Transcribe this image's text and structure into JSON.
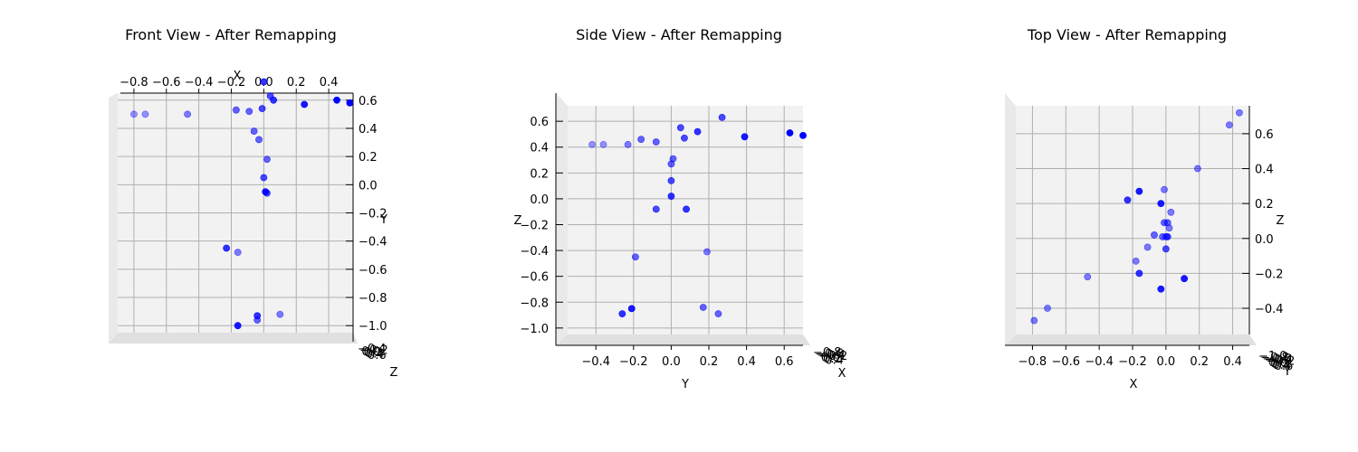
{
  "figure": {
    "background": "#ffffff",
    "point_color": "#0000ff"
  },
  "chart_data": [
    {
      "type": "scatter",
      "title": "Front View - After Remapping",
      "view": "front",
      "xlabel": "X",
      "ylabel": "Y",
      "zlabel": "Z",
      "xlim": [
        -0.9,
        0.55
      ],
      "ylim": [
        -1.05,
        0.65
      ],
      "x_ticks": [
        "−0.8",
        "−0.6",
        "−0.4",
        "−0.2",
        "0.0",
        "0.2",
        "0.4"
      ],
      "x_tick_values": [
        -0.8,
        -0.6,
        -0.4,
        -0.2,
        0.0,
        0.2,
        0.4
      ],
      "y_ticks": [
        "0.6",
        "0.4",
        "0.2",
        "0.0",
        "−0.2",
        "−0.4",
        "−0.6",
        "−0.8",
        "−1.0"
      ],
      "y_tick_values": [
        0.6,
        0.4,
        0.2,
        0.0,
        -0.2,
        -0.4,
        -0.6,
        -0.8,
        -1.0
      ],
      "z_ticks": [
        "−0.4",
        "−0.2",
        "0.0",
        "0.2",
        "0.4",
        "0.6"
      ],
      "points": [
        {
          "x": 0.0,
          "y": 0.73,
          "alpha": 0.8
        },
        {
          "x": 0.04,
          "y": 0.63,
          "alpha": 0.7
        },
        {
          "x": 0.06,
          "y": 0.6,
          "alpha": 0.8
        },
        {
          "x": -0.01,
          "y": 0.54,
          "alpha": 0.7
        },
        {
          "x": -0.17,
          "y": 0.53,
          "alpha": 0.6
        },
        {
          "x": -0.09,
          "y": 0.52,
          "alpha": 0.6
        },
        {
          "x": 0.25,
          "y": 0.57,
          "alpha": 0.9
        },
        {
          "x": 0.45,
          "y": 0.6,
          "alpha": 1.0
        },
        {
          "x": 0.53,
          "y": 0.58,
          "alpha": 1.0
        },
        {
          "x": -0.8,
          "y": 0.5,
          "alpha": 0.4
        },
        {
          "x": -0.73,
          "y": 0.5,
          "alpha": 0.4
        },
        {
          "x": -0.47,
          "y": 0.5,
          "alpha": 0.5
        },
        {
          "x": -0.06,
          "y": 0.38,
          "alpha": 0.6
        },
        {
          "x": -0.03,
          "y": 0.32,
          "alpha": 0.6
        },
        {
          "x": 0.02,
          "y": 0.18,
          "alpha": 0.6
        },
        {
          "x": 0.0,
          "y": 0.05,
          "alpha": 0.7
        },
        {
          "x": 0.01,
          "y": -0.05,
          "alpha": 0.9
        },
        {
          "x": 0.02,
          "y": -0.06,
          "alpha": 0.7
        },
        {
          "x": -0.23,
          "y": -0.45,
          "alpha": 0.8
        },
        {
          "x": -0.16,
          "y": -0.48,
          "alpha": 0.5
        },
        {
          "x": -0.04,
          "y": -0.93,
          "alpha": 0.8
        },
        {
          "x": -0.04,
          "y": -0.96,
          "alpha": 0.6
        },
        {
          "x": 0.1,
          "y": -0.92,
          "alpha": 0.5
        },
        {
          "x": -0.16,
          "y": -1.0,
          "alpha": 0.9
        }
      ]
    },
    {
      "type": "scatter",
      "title": "Side View - After Remapping",
      "view": "side",
      "xlabel": "Y",
      "ylabel": "Z",
      "zlabel": "X",
      "xlim": [
        -0.55,
        0.7
      ],
      "ylim": [
        -1.05,
        0.72
      ],
      "x_ticks": [
        "−0.4",
        "−0.2",
        "0.0",
        "0.2",
        "0.4",
        "0.6"
      ],
      "x_tick_values": [
        -0.4,
        -0.2,
        0.0,
        0.2,
        0.4,
        0.6
      ],
      "y_ticks": [
        "0.6",
        "0.4",
        "0.2",
        "0.0",
        "−0.2",
        "−0.4",
        "−0.6",
        "−0.8",
        "−1.0"
      ],
      "y_tick_values": [
        0.6,
        0.4,
        0.2,
        0.0,
        -0.2,
        -0.4,
        -0.6,
        -0.8,
        -1.0
      ],
      "z_ticks": [
        "−0.8",
        "−0.6",
        "−0.4",
        "−0.2",
        "0.0",
        "0.2",
        "0.4"
      ],
      "points": [
        {
          "x": 0.27,
          "y": 0.63,
          "alpha": 0.7
        },
        {
          "x": 0.05,
          "y": 0.55,
          "alpha": 0.7
        },
        {
          "x": 0.14,
          "y": 0.52,
          "alpha": 0.8
        },
        {
          "x": 0.07,
          "y": 0.47,
          "alpha": 0.7
        },
        {
          "x": 0.39,
          "y": 0.48,
          "alpha": 0.9
        },
        {
          "x": 0.63,
          "y": 0.51,
          "alpha": 1.0
        },
        {
          "x": 0.7,
          "y": 0.49,
          "alpha": 1.0
        },
        {
          "x": -0.42,
          "y": 0.42,
          "alpha": 0.4
        },
        {
          "x": -0.36,
          "y": 0.42,
          "alpha": 0.4
        },
        {
          "x": -0.23,
          "y": 0.42,
          "alpha": 0.5
        },
        {
          "x": -0.16,
          "y": 0.46,
          "alpha": 0.6
        },
        {
          "x": -0.08,
          "y": 0.44,
          "alpha": 0.6
        },
        {
          "x": 0.01,
          "y": 0.31,
          "alpha": 0.6
        },
        {
          "x": 0.0,
          "y": 0.27,
          "alpha": 0.6
        },
        {
          "x": 0.0,
          "y": 0.14,
          "alpha": 0.7
        },
        {
          "x": 0.0,
          "y": 0.02,
          "alpha": 0.8
        },
        {
          "x": -0.08,
          "y": -0.08,
          "alpha": 0.7
        },
        {
          "x": 0.08,
          "y": -0.08,
          "alpha": 0.8
        },
        {
          "x": -0.19,
          "y": -0.45,
          "alpha": 0.6
        },
        {
          "x": 0.19,
          "y": -0.41,
          "alpha": 0.5
        },
        {
          "x": -0.21,
          "y": -0.85,
          "alpha": 0.9
        },
        {
          "x": -0.26,
          "y": -0.89,
          "alpha": 0.8
        },
        {
          "x": 0.17,
          "y": -0.84,
          "alpha": 0.6
        },
        {
          "x": 0.25,
          "y": -0.89,
          "alpha": 0.6
        }
      ]
    },
    {
      "type": "scatter",
      "title": "Top View - After Remapping",
      "view": "top",
      "xlabel": "X",
      "ylabel": "Z",
      "zlabel": "Y",
      "xlim": [
        -0.9,
        0.5
      ],
      "ylim": [
        -0.55,
        0.76
      ],
      "x_ticks": [
        "−0.8",
        "−0.6",
        "−0.4",
        "−0.2",
        "0.0",
        "0.2",
        "0.4"
      ],
      "x_tick_values": [
        -0.8,
        -0.6,
        -0.4,
        -0.2,
        0.0,
        0.2,
        0.4
      ],
      "y_ticks": [
        "0.6",
        "0.4",
        "0.2",
        "0.0",
        "−0.2",
        "−0.4"
      ],
      "y_tick_values": [
        0.6,
        0.4,
        0.2,
        0.0,
        -0.2,
        -0.4
      ],
      "z_ticks": [
        "−1.0",
        "−0.8",
        "−0.6",
        "−0.4",
        "−0.2",
        "0.0",
        "0.2",
        "0.4",
        "0.6"
      ],
      "points": [
        {
          "x": 0.44,
          "y": 0.72,
          "alpha": 0.5
        },
        {
          "x": 0.38,
          "y": 0.65,
          "alpha": 0.5
        },
        {
          "x": 0.19,
          "y": 0.4,
          "alpha": 0.5
        },
        {
          "x": -0.01,
          "y": 0.28,
          "alpha": 0.5
        },
        {
          "x": -0.16,
          "y": 0.27,
          "alpha": 0.9
        },
        {
          "x": -0.23,
          "y": 0.22,
          "alpha": 0.8
        },
        {
          "x": -0.03,
          "y": 0.2,
          "alpha": 0.9
        },
        {
          "x": 0.03,
          "y": 0.15,
          "alpha": 0.5
        },
        {
          "x": -0.01,
          "y": 0.09,
          "alpha": 0.6
        },
        {
          "x": 0.01,
          "y": 0.09,
          "alpha": 0.6
        },
        {
          "x": 0.02,
          "y": 0.06,
          "alpha": 0.5
        },
        {
          "x": -0.07,
          "y": 0.02,
          "alpha": 0.6
        },
        {
          "x": -0.02,
          "y": 0.01,
          "alpha": 0.6
        },
        {
          "x": 0.01,
          "y": 0.01,
          "alpha": 0.7
        },
        {
          "x": 0.0,
          "y": 0.01,
          "alpha": 0.6
        },
        {
          "x": -0.11,
          "y": -0.05,
          "alpha": 0.5
        },
        {
          "x": 0.0,
          "y": -0.06,
          "alpha": 0.7
        },
        {
          "x": -0.18,
          "y": -0.13,
          "alpha": 0.5
        },
        {
          "x": -0.16,
          "y": -0.2,
          "alpha": 0.8
        },
        {
          "x": -0.47,
          "y": -0.22,
          "alpha": 0.5
        },
        {
          "x": 0.11,
          "y": -0.23,
          "alpha": 0.9
        },
        {
          "x": -0.03,
          "y": -0.29,
          "alpha": 0.9
        },
        {
          "x": -0.71,
          "y": -0.4,
          "alpha": 0.5
        },
        {
          "x": -0.79,
          "y": -0.47,
          "alpha": 0.5
        }
      ]
    }
  ]
}
